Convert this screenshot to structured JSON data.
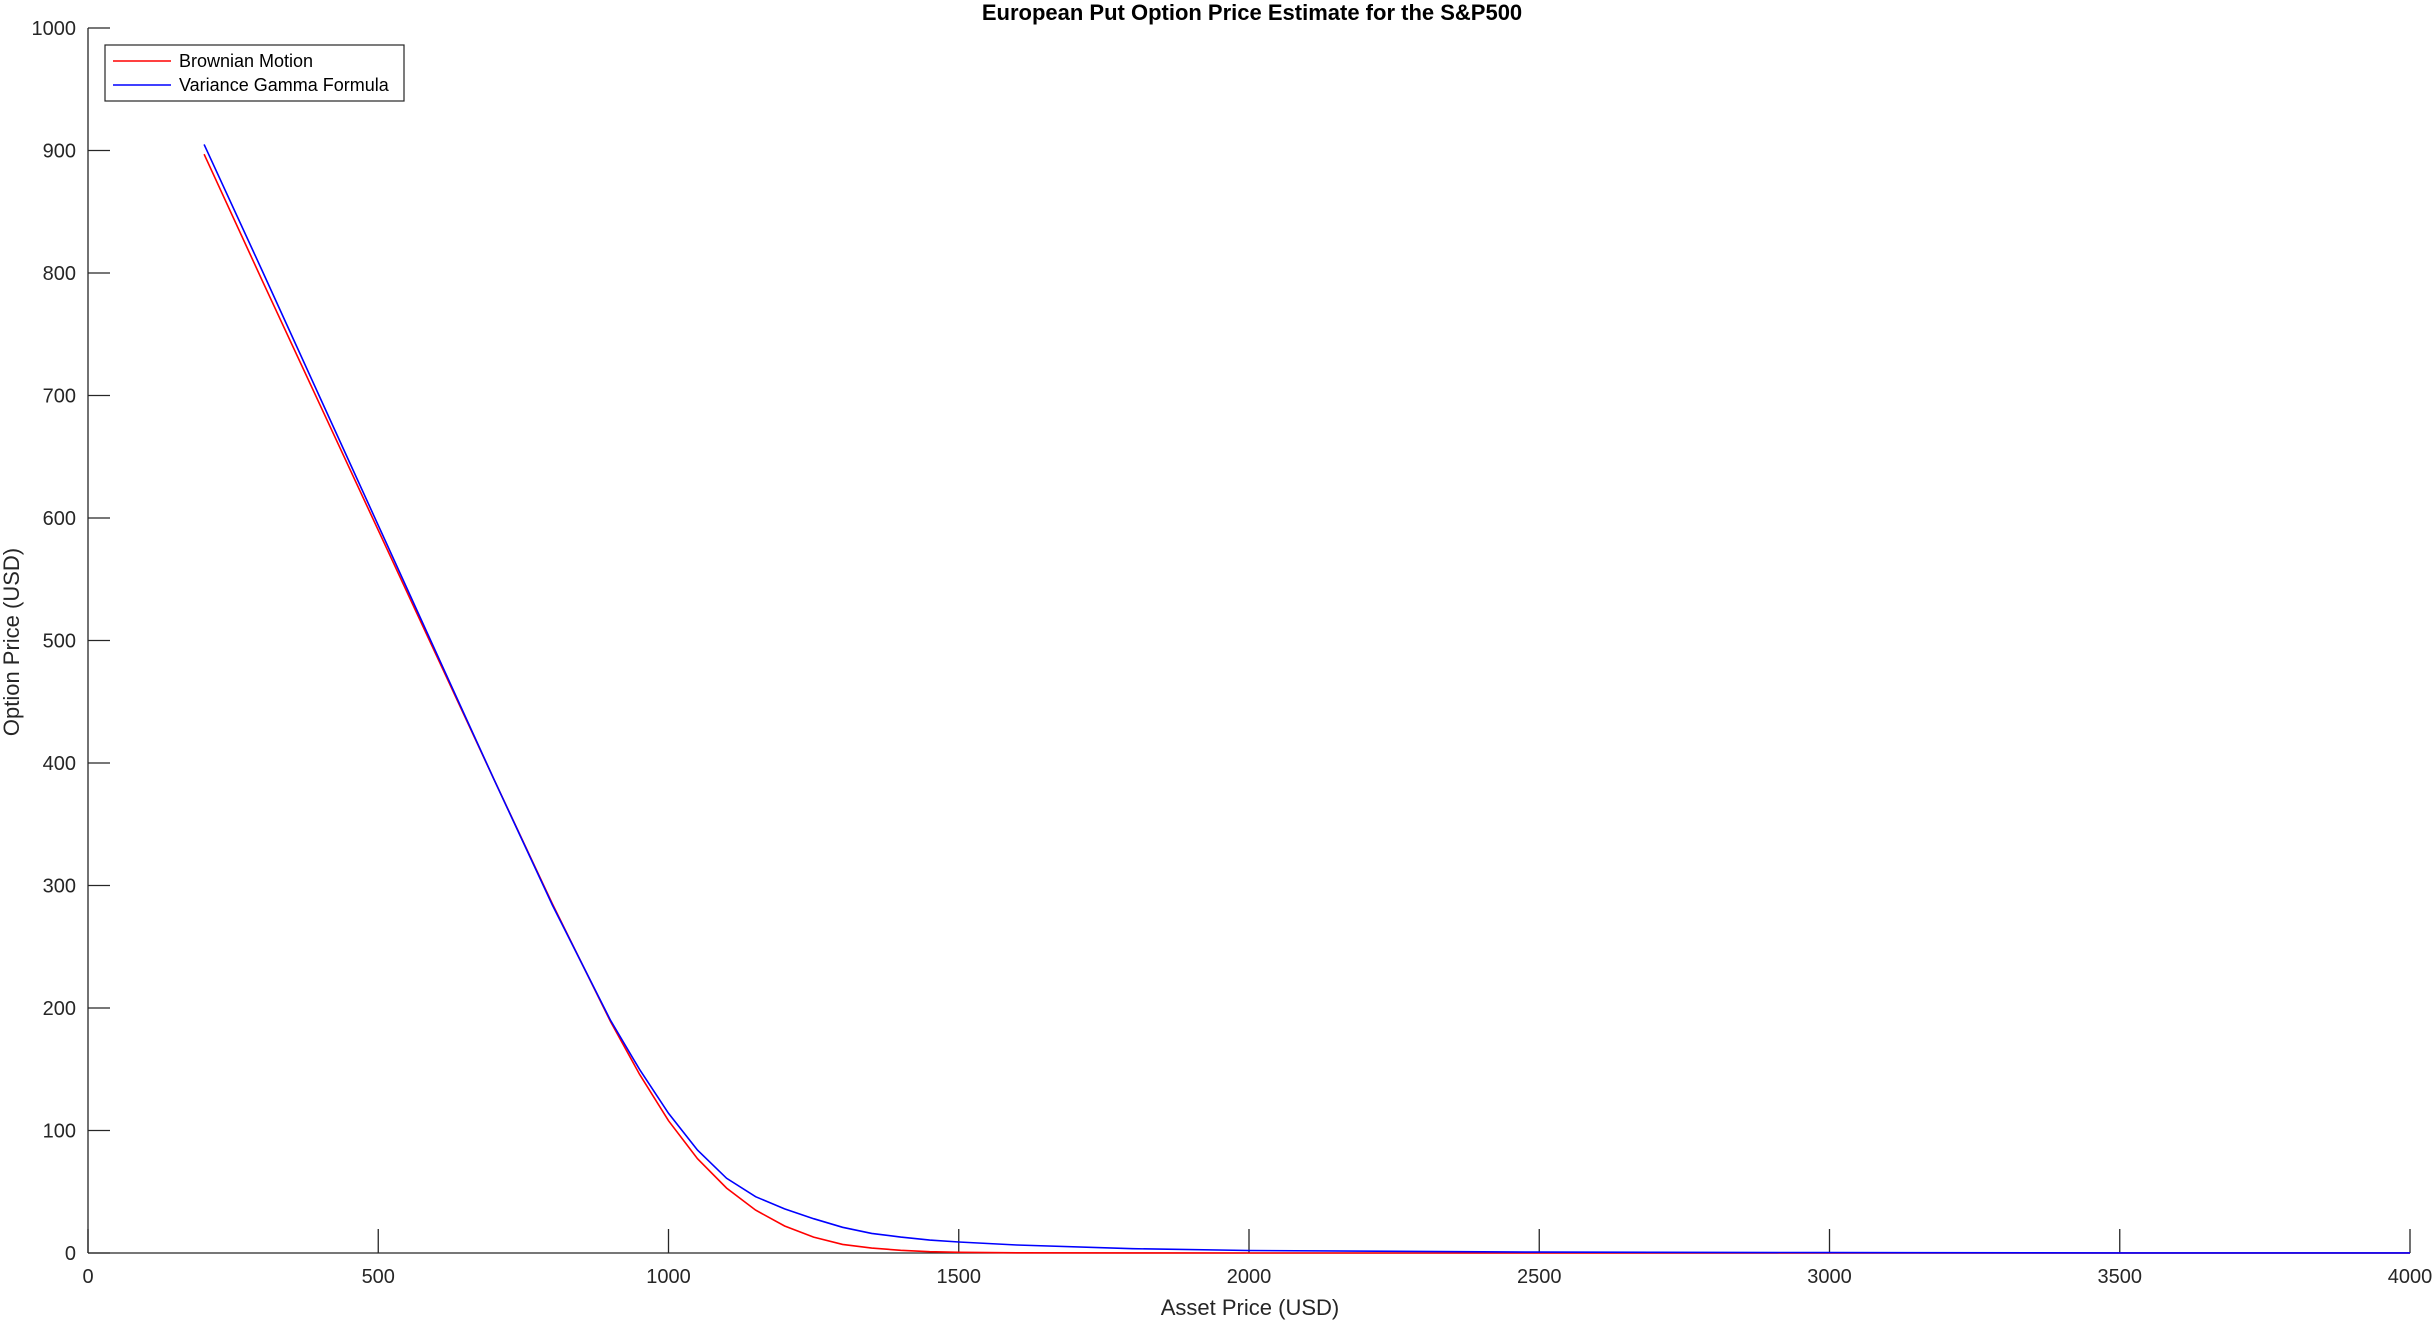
{
  "chart_data": {
    "type": "line",
    "title": "European Put Option Price Estimate for the S&P500",
    "xlabel": "Asset Price (USD)",
    "ylabel": "Option Price (USD)",
    "xlim": [
      0,
      4000
    ],
    "ylim": [
      0,
      1000
    ],
    "xticks": [
      0,
      500,
      1000,
      1500,
      2000,
      2500,
      3000,
      3500,
      4000
    ],
    "yticks": [
      0,
      100,
      200,
      300,
      400,
      500,
      600,
      700,
      800,
      900,
      1000
    ],
    "grid": false,
    "legend": "top-left",
    "series": [
      {
        "name": "Brownian Motion",
        "color": "#ff0000",
        "x": [
          200,
          300,
          400,
          500,
          600,
          700,
          800,
          900,
          950,
          1000,
          1050,
          1100,
          1150,
          1200,
          1250,
          1300,
          1350,
          1400,
          1450,
          1500,
          1600,
          1800,
          2000,
          2500,
          3000,
          3500,
          4000
        ],
        "y": [
          897,
          794,
          692,
          590,
          488,
          386,
          285,
          189,
          146,
          108,
          77,
          53,
          35,
          22,
          13,
          7,
          4,
          2.2,
          1.1,
          0.6,
          0.2,
          0.05,
          0.01,
          0,
          0,
          0,
          0
        ]
      },
      {
        "name": "Variance Gamma Formula",
        "color": "#0000ff",
        "x": [
          200,
          300,
          400,
          500,
          600,
          700,
          800,
          900,
          950,
          1000,
          1050,
          1100,
          1150,
          1200,
          1250,
          1300,
          1350,
          1400,
          1450,
          1500,
          1600,
          1800,
          2000,
          2500,
          3000,
          3500,
          4000
        ],
        "y": [
          905,
          802,
          698,
          594,
          490,
          386,
          284,
          190,
          150,
          114,
          84,
          61,
          46,
          36,
          28,
          21,
          16,
          13,
          10.5,
          9,
          6.5,
          3.5,
          2,
          0.7,
          0.3,
          0.1,
          0.05
        ]
      }
    ]
  }
}
